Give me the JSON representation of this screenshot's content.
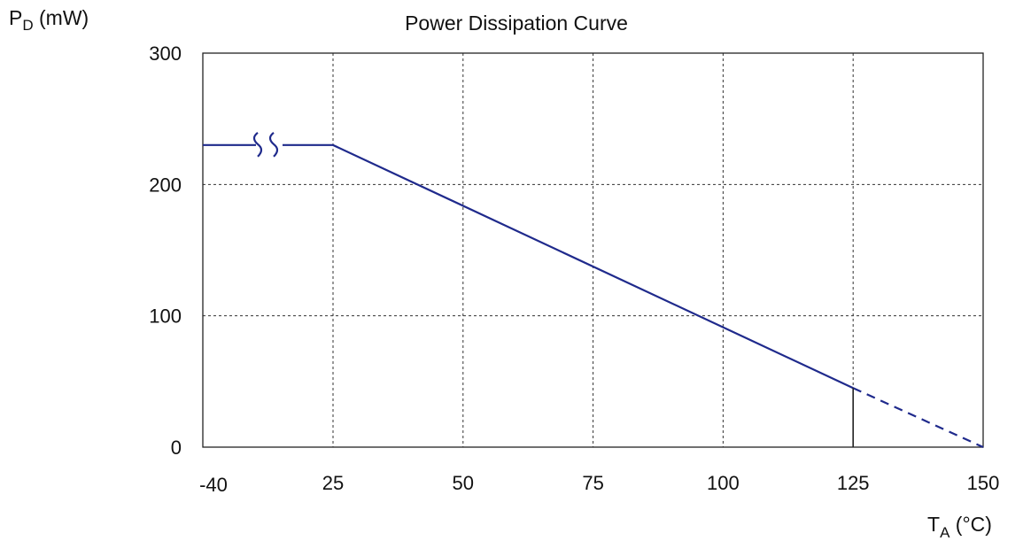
{
  "chart_data": {
    "type": "line",
    "title": "Power Dissipation Curve",
    "ylabel": {
      "symbol": "P",
      "subscript": "D",
      "unit": " (mW)"
    },
    "xlabel": {
      "symbol": "T",
      "subscript": "A",
      "unit": " (°C)"
    },
    "x_tick_labels": [
      "-40",
      "25",
      "50",
      "75",
      "100",
      "125",
      "150"
    ],
    "x_ticks": [
      0,
      25,
      50,
      75,
      100,
      125,
      150
    ],
    "y_ticks": [
      0,
      100,
      200,
      300
    ],
    "y_tick_labels": [
      "0",
      "100",
      "200",
      "300"
    ],
    "xlim": [
      0,
      150
    ],
    "ylim": [
      0,
      300
    ],
    "grid": true,
    "axis_break": {
      "x": 12,
      "note": "break in x-axis between -40 and 25"
    },
    "series": [
      {
        "style": "solid",
        "color": "#1f2a8c",
        "points": [
          [
            -40,
            230
          ],
          [
            25,
            230
          ],
          [
            125,
            45
          ]
        ]
      },
      {
        "style": "dashed",
        "color": "#1f2a8c",
        "points": [
          [
            125,
            45
          ],
          [
            150,
            0
          ]
        ]
      }
    ],
    "marker_line": {
      "x": 125,
      "y": 45
    }
  }
}
